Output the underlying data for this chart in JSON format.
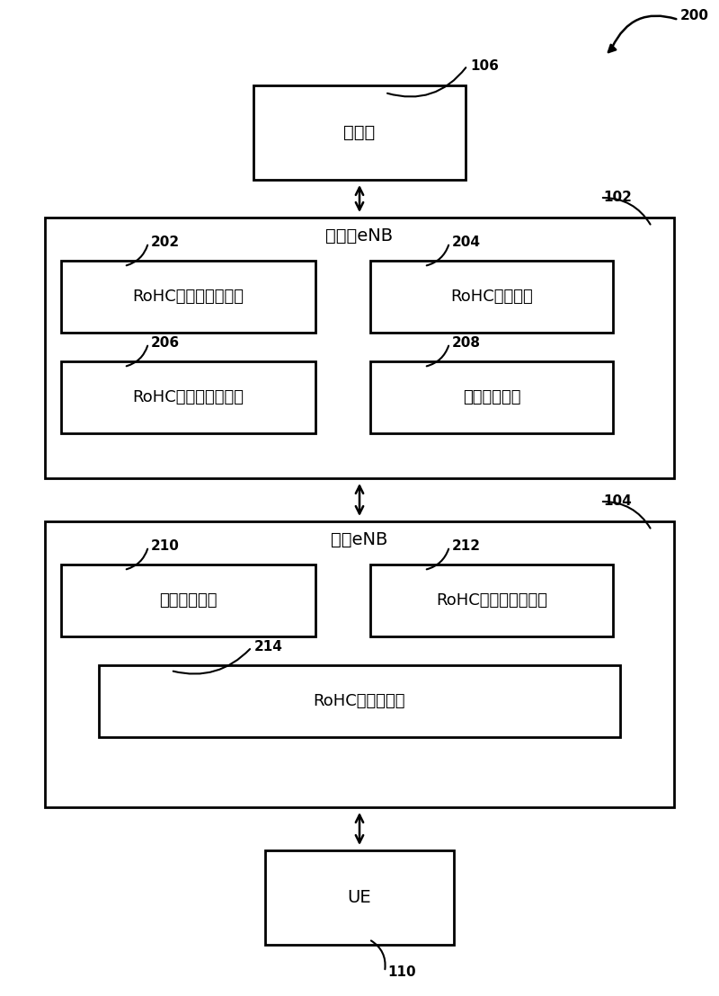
{
  "bg_color": "#ffffff",
  "fig_width": 8.0,
  "fig_height": 11.08,
  "dpi": 100,
  "label_200": "200",
  "label_106": "106",
  "label_102": "102",
  "label_104": "104",
  "label_110": "110",
  "label_202": "202",
  "label_204": "204",
  "label_206": "206",
  "label_208": "208",
  "label_210": "210",
  "label_212": "212",
  "label_214": "214",
  "text_core": "核心网",
  "text_supplier_enb": "供给方eNB",
  "text_relay_enb": "中继eNB",
  "text_ue": "UE",
  "text_202": "RoHC上下文选择组件",
  "text_204": "RoHC压缩组件",
  "text_206": "RoHC上下文指示组件",
  "text_208": "承载通信组件",
  "text_210": "承载通信组件",
  "text_212": "RoHC上下文确定组件",
  "text_214": "RoHC解压缩组件",
  "line_color": "#000000",
  "box_facecolor": "#ffffff",
  "box_edgecolor": "#000000",
  "text_color": "#000000",
  "label_color": "#000000",
  "font_size_title": 14,
  "font_size_label": 11,
  "font_size_inner": 13,
  "font_size_box_title": 14
}
